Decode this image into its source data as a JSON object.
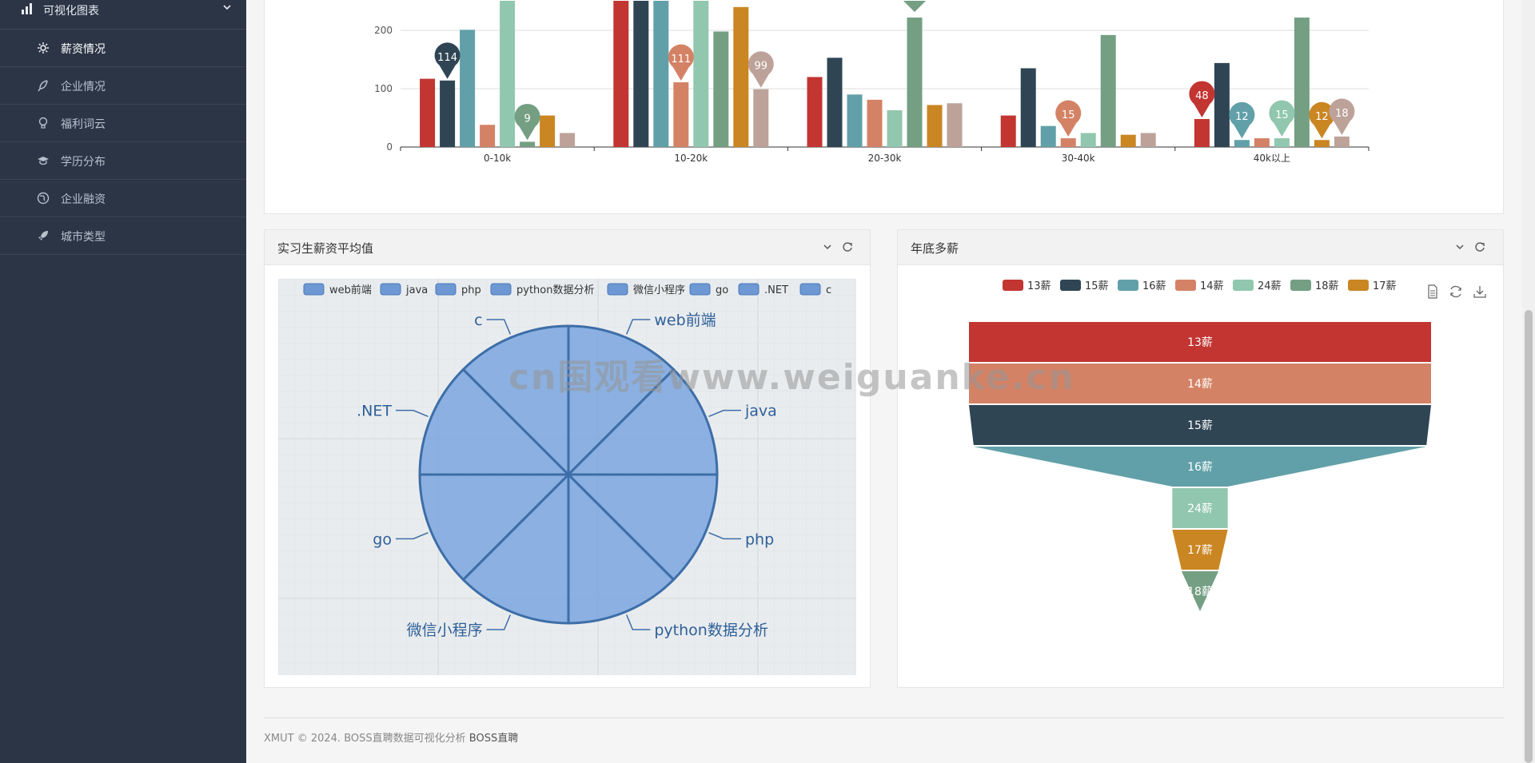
{
  "sidebar": {
    "group_label": "可视化图表",
    "items": [
      {
        "label": "薪资情况",
        "icon": "gear-icon",
        "active": true
      },
      {
        "label": "企业情况",
        "icon": "feather-icon",
        "active": false
      },
      {
        "label": "福利词云",
        "icon": "lightbulb-icon",
        "active": false
      },
      {
        "label": "学历分布",
        "icon": "graduation-cap-icon",
        "active": false
      },
      {
        "label": "企业融资",
        "icon": "globe-icon",
        "active": false
      },
      {
        "label": "城市类型",
        "icon": "rocket-icon",
        "active": false
      }
    ]
  },
  "panels": {
    "intern": {
      "title": "实习生薪资平均值"
    },
    "year_end": {
      "title": "年底多薪"
    }
  },
  "footer": {
    "text": "XMUT © 2024. BOSS直聘数据可视化分析 ",
    "link": "BOSS直聘"
  },
  "watermark": "cn国观看www.weiguanke.cn",
  "colors": {
    "13薪": "#c23531",
    "15薪": "#2f4554",
    "16薪": "#61a0a8",
    "14薪": "#d48265",
    "24薪": "#91c7ae",
    "18薪": "#749f83",
    "17薪": "#ca8622",
    "extra": "#bda29a"
  },
  "chart_data": [
    {
      "type": "bar",
      "categories": [
        "0-10k",
        "10-20k",
        "20-30k",
        "30-40k",
        "40k以上"
      ],
      "ylim": [
        0,
        260
      ],
      "yticks": [
        0,
        100,
        200
      ],
      "series": [
        {
          "color": "#c23531",
          "values": [
            117,
            290,
            120,
            54,
            48
          ]
        },
        {
          "color": "#2f4554",
          "values": [
            114,
            300,
            153,
            135,
            144
          ]
        },
        {
          "color": "#61a0a8",
          "values": [
            201,
            280,
            90,
            36,
            12
          ]
        },
        {
          "color": "#d48265",
          "values": [
            38,
            111,
            81,
            15,
            15
          ]
        },
        {
          "color": "#91c7ae",
          "values": [
            300,
            300,
            63,
            24,
            15
          ]
        },
        {
          "color": "#749f83",
          "values": [
            9,
            198,
            222,
            192,
            222
          ]
        },
        {
          "color": "#ca8622",
          "values": [
            54,
            240,
            72,
            21,
            12
          ]
        },
        {
          "color": "#bda29a",
          "values": [
            24,
            99,
            75,
            24,
            18
          ]
        }
      ],
      "pins": [
        {
          "series": 1,
          "cat": 0,
          "label": "114"
        },
        {
          "series": 5,
          "cat": 0,
          "label": "9"
        },
        {
          "series": 3,
          "cat": 1,
          "label": "111"
        },
        {
          "series": 7,
          "cat": 1,
          "label": "99"
        },
        {
          "series": 3,
          "cat": 3,
          "label": "15"
        },
        {
          "series": 0,
          "cat": 4,
          "label": "48"
        },
        {
          "series": 2,
          "cat": 4,
          "label": "12"
        },
        {
          "series": 4,
          "cat": 4,
          "label": "15"
        },
        {
          "series": 6,
          "cat": 4,
          "label": "12"
        },
        {
          "series": 7,
          "cat": 4,
          "label": "18"
        }
      ]
    },
    {
      "type": "pie",
      "legend": [
        "web前端",
        "java",
        "php",
        "python数据分析",
        "微信小程序",
        "go",
        ".NET",
        "c"
      ],
      "slices": [
        {
          "name": "web前端",
          "value": 1
        },
        {
          "name": "java",
          "value": 1
        },
        {
          "name": "php",
          "value": 1
        },
        {
          "name": "python数据分析",
          "value": 1
        },
        {
          "name": "微信小程序",
          "value": 1
        },
        {
          "name": "go",
          "value": 1
        },
        {
          "name": ".NET",
          "value": 1
        },
        {
          "name": "c",
          "value": 1
        }
      ]
    },
    {
      "type": "funnel",
      "legend": [
        {
          "name": "13薪",
          "color": "#c23531"
        },
        {
          "name": "15薪",
          "color": "#2f4554"
        },
        {
          "name": "16薪",
          "color": "#61a0a8"
        },
        {
          "name": "14薪",
          "color": "#d48265"
        },
        {
          "name": "24薪",
          "color": "#91c7ae"
        },
        {
          "name": "18薪",
          "color": "#749f83"
        },
        {
          "name": "17薪",
          "color": "#ca8622"
        }
      ],
      "levels": [
        {
          "name": "13薪",
          "color": "#c23531",
          "value": 100
        },
        {
          "name": "14薪",
          "color": "#d48265",
          "value": 100
        },
        {
          "name": "15薪",
          "color": "#2f4554",
          "value": 100
        },
        {
          "name": "16薪",
          "color": "#61a0a8",
          "value": 98
        },
        {
          "name": "24薪",
          "color": "#91c7ae",
          "value": 12
        },
        {
          "name": "17薪",
          "color": "#ca8622",
          "value": 12
        },
        {
          "name": "18薪",
          "color": "#749f83",
          "value": 8
        }
      ]
    }
  ]
}
